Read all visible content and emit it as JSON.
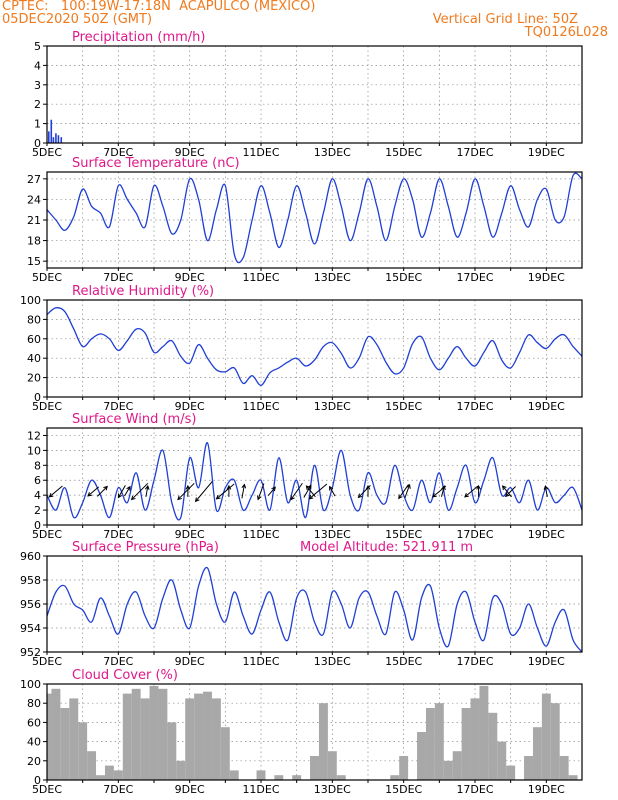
{
  "header": {
    "line1": "CPTEC:   100:19W-17:18N  ACAPULCO (MEXICO)",
    "line2": "05DEC2020 50Z (GMT)",
    "grid_note": "Vertical Grid Line: 50Z",
    "code": "TQ0126L028"
  },
  "colors": {
    "header": "#f07a1e",
    "title": "#e0188a",
    "series": "#1f3fd6",
    "cloud": "#a8a8a8",
    "arrow": "#000000"
  },
  "x_axis": {
    "tick_labels": [
      "5DEC",
      "7DEC",
      "9DEC",
      "11DEC",
      "13DEC",
      "15DEC",
      "17DEC",
      "19DEC"
    ],
    "range_days": [
      5,
      20
    ]
  },
  "chart_data": [
    {
      "type": "bar",
      "title": "Precipitation (mm/h)",
      "ylim": [
        0,
        5
      ],
      "yticks": [
        "0",
        "1",
        "2",
        "3",
        "4",
        "5"
      ],
      "x": [
        5.05,
        5.12,
        5.18,
        5.25,
        5.32,
        5.4
      ],
      "values": [
        0.6,
        1.2,
        0.3,
        0.5,
        0.4,
        0.3
      ]
    },
    {
      "type": "line",
      "title": "Surface Temperature (nC)",
      "ylim": [
        14,
        28
      ],
      "yticks": [
        "15",
        "18",
        "21",
        "24",
        "27"
      ],
      "x": [
        5.0,
        5.25,
        5.5,
        5.75,
        6.0,
        6.25,
        6.5,
        6.75,
        7.0,
        7.25,
        7.5,
        7.75,
        8.0,
        8.25,
        8.5,
        8.75,
        9.0,
        9.25,
        9.5,
        9.75,
        10.0,
        10.25,
        10.5,
        10.75,
        11.0,
        11.25,
        11.5,
        11.75,
        12.0,
        12.25,
        12.5,
        12.75,
        13.0,
        13.25,
        13.5,
        13.75,
        14.0,
        14.25,
        14.5,
        14.75,
        15.0,
        15.25,
        15.5,
        15.75,
        16.0,
        16.25,
        16.5,
        16.75,
        17.0,
        17.25,
        17.5,
        17.75,
        18.0,
        18.25,
        18.5,
        18.75,
        19.0,
        19.25,
        19.5,
        19.75,
        20.0
      ],
      "values": [
        22.5,
        21.0,
        19.5,
        21.5,
        25.5,
        23.0,
        22.0,
        20.0,
        26.0,
        24.0,
        22.0,
        20.0,
        26.0,
        23.0,
        19.0,
        21.0,
        27.0,
        24.0,
        18.0,
        22.5,
        26.0,
        16.0,
        15.5,
        21.0,
        26.0,
        22.0,
        17.0,
        21.0,
        26.0,
        22.0,
        17.5,
        22.0,
        27.0,
        23.0,
        18.0,
        22.0,
        27.0,
        23.0,
        18.0,
        23.0,
        27.0,
        24.0,
        18.5,
        22.0,
        27.0,
        23.0,
        18.5,
        22.0,
        27.0,
        23.0,
        18.5,
        22.0,
        26.0,
        22.5,
        20.0,
        24.0,
        25.5,
        21.0,
        21.5,
        27.5,
        27.0
      ]
    },
    {
      "type": "line",
      "title": "Relative Humidity (%)",
      "ylim": [
        0,
        100
      ],
      "yticks": [
        "0",
        "20",
        "40",
        "60",
        "80",
        "100"
      ],
      "x": [
        5.0,
        5.25,
        5.5,
        5.75,
        6.0,
        6.25,
        6.5,
        6.75,
        7.0,
        7.25,
        7.5,
        7.75,
        8.0,
        8.25,
        8.5,
        8.75,
        9.0,
        9.25,
        9.5,
        9.75,
        10.0,
        10.25,
        10.5,
        10.75,
        11.0,
        11.25,
        11.5,
        11.75,
        12.0,
        12.25,
        12.5,
        12.75,
        13.0,
        13.25,
        13.5,
        13.75,
        14.0,
        14.25,
        14.5,
        14.75,
        15.0,
        15.25,
        15.5,
        15.75,
        16.0,
        16.25,
        16.5,
        16.75,
        17.0,
        17.25,
        17.5,
        17.75,
        18.0,
        18.25,
        18.5,
        18.75,
        19.0,
        19.25,
        19.5,
        19.75,
        20.0
      ],
      "values": [
        85,
        92,
        88,
        70,
        52,
        60,
        65,
        60,
        48,
        58,
        70,
        66,
        46,
        52,
        58,
        42,
        35,
        54,
        40,
        28,
        26,
        30,
        14,
        22,
        12,
        25,
        30,
        36,
        40,
        32,
        38,
        52,
        56,
        45,
        30,
        40,
        62,
        54,
        36,
        24,
        30,
        55,
        62,
        40,
        28,
        40,
        52,
        40,
        32,
        46,
        58,
        38,
        30,
        46,
        64,
        56,
        50,
        60,
        64,
        52,
        42
      ]
    },
    {
      "type": "line",
      "title": "Surface Wind (m/s)",
      "ylim": [
        0,
        13
      ],
      "yticks": [
        "0",
        "2",
        "4",
        "6",
        "8",
        "10",
        "12"
      ],
      "x": [
        5.0,
        5.25,
        5.5,
        5.75,
        6.0,
        6.25,
        6.5,
        6.75,
        7.0,
        7.25,
        7.5,
        7.75,
        8.0,
        8.25,
        8.5,
        8.75,
        9.0,
        9.25,
        9.5,
        9.75,
        10.0,
        10.25,
        10.5,
        10.75,
        11.0,
        11.25,
        11.5,
        11.75,
        12.0,
        12.25,
        12.5,
        12.75,
        13.0,
        13.25,
        13.5,
        13.75,
        14.0,
        14.25,
        14.5,
        14.75,
        15.0,
        15.25,
        15.5,
        15.75,
        16.0,
        16.25,
        16.5,
        16.75,
        17.0,
        17.25,
        17.5,
        17.75,
        18.0,
        18.25,
        18.5,
        18.75,
        19.0,
        19.25,
        19.5,
        19.75,
        20.0
      ],
      "values": [
        4,
        2,
        5,
        1,
        3,
        6,
        4,
        1,
        5,
        3,
        7,
        2,
        6,
        10,
        3,
        1,
        9,
        5,
        11,
        2,
        5,
        6,
        2,
        4,
        6,
        2,
        9,
        3,
        6,
        1,
        8,
        2,
        5,
        10,
        4,
        2,
        7,
        4,
        3,
        8,
        4,
        2,
        6,
        3,
        7,
        2,
        5,
        8,
        3,
        6,
        9,
        4,
        5,
        3,
        6,
        2,
        5,
        3,
        4,
        5,
        2
      ]
    },
    {
      "type": "line",
      "title": "Surface Pressure (hPa)",
      "annotation": "Model Altitude: 521.911  m",
      "ylim": [
        952,
        960
      ],
      "yticks": [
        "952",
        "954",
        "956",
        "958",
        "960"
      ],
      "x": [
        5.0,
        5.25,
        5.5,
        5.75,
        6.0,
        6.25,
        6.5,
        6.75,
        7.0,
        7.25,
        7.5,
        7.75,
        8.0,
        8.25,
        8.5,
        8.75,
        9.0,
        9.25,
        9.5,
        9.75,
        10.0,
        10.25,
        10.5,
        10.75,
        11.0,
        11.25,
        11.5,
        11.75,
        12.0,
        12.25,
        12.5,
        12.75,
        13.0,
        13.25,
        13.5,
        13.75,
        14.0,
        14.25,
        14.5,
        14.75,
        15.0,
        15.25,
        15.5,
        15.75,
        16.0,
        16.25,
        16.5,
        16.75,
        17.0,
        17.25,
        17.5,
        17.75,
        18.0,
        18.25,
        18.5,
        18.75,
        19.0,
        19.25,
        19.5,
        19.75,
        20.0
      ],
      "values": [
        955.0,
        957.0,
        957.5,
        956.0,
        955.5,
        954.5,
        956.5,
        955.0,
        953.5,
        956.0,
        957.0,
        955.0,
        954.0,
        956.5,
        958.0,
        955.5,
        954.0,
        957.5,
        959.0,
        956.0,
        954.5,
        957.0,
        955.0,
        953.5,
        955.5,
        957.0,
        954.5,
        953.0,
        956.5,
        957.0,
        954.5,
        953.5,
        957.0,
        956.0,
        954.0,
        956.5,
        957.0,
        955.0,
        953.5,
        957.0,
        955.5,
        953.0,
        956.5,
        957.5,
        954.0,
        952.5,
        956.0,
        957.0,
        954.5,
        953.0,
        956.5,
        956.0,
        953.5,
        954.0,
        956.0,
        954.0,
        952.5,
        954.5,
        955.5,
        953.0,
        952.0
      ]
    },
    {
      "type": "area",
      "title": "Cloud Cover (%)",
      "ylim": [
        0,
        100
      ],
      "yticks": [
        "0",
        "20",
        "40",
        "60",
        "80",
        "100"
      ],
      "x": [
        5.0,
        5.25,
        5.5,
        5.75,
        6.0,
        6.25,
        6.5,
        6.75,
        7.0,
        7.25,
        7.5,
        7.75,
        8.0,
        8.25,
        8.5,
        8.75,
        9.0,
        9.25,
        9.5,
        9.75,
        10.0,
        10.25,
        10.5,
        10.75,
        11.0,
        11.25,
        11.5,
        11.75,
        12.0,
        12.25,
        12.5,
        12.75,
        13.0,
        13.25,
        13.5,
        13.75,
        14.0,
        14.25,
        14.5,
        14.75,
        15.0,
        15.25,
        15.5,
        15.75,
        16.0,
        16.25,
        16.5,
        16.75,
        17.0,
        17.25,
        17.5,
        17.75,
        18.0,
        18.25,
        18.5,
        18.75,
        19.0,
        19.25,
        19.5,
        19.75,
        20.0
      ],
      "values": [
        90,
        95,
        75,
        85,
        60,
        30,
        5,
        15,
        10,
        90,
        95,
        85,
        98,
        95,
        60,
        20,
        85,
        90,
        92,
        85,
        55,
        10,
        0,
        0,
        10,
        0,
        5,
        0,
        5,
        0,
        25,
        80,
        30,
        5,
        0,
        0,
        0,
        0,
        0,
        5,
        25,
        0,
        50,
        75,
        80,
        20,
        30,
        75,
        85,
        98,
        70,
        40,
        15,
        0,
        25,
        55,
        90,
        80,
        25,
        5,
        0
      ]
    }
  ],
  "wind_arrows": [
    {
      "x": 5.25,
      "dir_deg": 230,
      "speed_ms": 4
    },
    {
      "x": 6.3,
      "dir_deg": 230,
      "speed_ms": 3
    },
    {
      "x": 6.55,
      "dir_deg": 45,
      "speed_ms": 3
    },
    {
      "x": 7.1,
      "dir_deg": 210,
      "speed_ms": 3
    },
    {
      "x": 7.25,
      "dir_deg": 30,
      "speed_ms": 2
    },
    {
      "x": 7.6,
      "dir_deg": 225,
      "speed_ms": 6
    },
    {
      "x": 7.8,
      "dir_deg": 10,
      "speed_ms": 2
    },
    {
      "x": 8.9,
      "dir_deg": 225,
      "speed_ms": 6
    },
    {
      "x": 8.95,
      "dir_deg": 0,
      "speed_ms": 2
    },
    {
      "x": 9.4,
      "dir_deg": 220,
      "speed_ms": 7
    },
    {
      "x": 10.0,
      "dir_deg": 230,
      "speed_ms": 6
    },
    {
      "x": 10.1,
      "dir_deg": 0,
      "speed_ms": 2
    },
    {
      "x": 10.5,
      "dir_deg": 10,
      "speed_ms": 3
    },
    {
      "x": 11.0,
      "dir_deg": 200,
      "speed_ms": 4
    },
    {
      "x": 11.3,
      "dir_deg": 40,
      "speed_ms": 2
    },
    {
      "x": 12.0,
      "dir_deg": 215,
      "speed_ms": 5
    },
    {
      "x": 12.3,
      "dir_deg": 30,
      "speed_ms": 3
    },
    {
      "x": 12.4,
      "dir_deg": 320,
      "speed_ms": 3
    },
    {
      "x": 12.6,
      "dir_deg": 230,
      "speed_ms": 6
    },
    {
      "x": 13.0,
      "dir_deg": 330,
      "speed_ms": 2
    },
    {
      "x": 13.9,
      "dir_deg": 225,
      "speed_ms": 4
    },
    {
      "x": 14.0,
      "dir_deg": 0,
      "speed_ms": 2
    },
    {
      "x": 15.0,
      "dir_deg": 215,
      "speed_ms": 4
    },
    {
      "x": 15.1,
      "dir_deg": 20,
      "speed_ms": 3
    },
    {
      "x": 16.0,
      "dir_deg": 230,
      "speed_ms": 4
    },
    {
      "x": 16.1,
      "dir_deg": 15,
      "speed_ms": 2
    },
    {
      "x": 16.9,
      "dir_deg": 230,
      "speed_ms": 4
    },
    {
      "x": 17.1,
      "dir_deg": 0,
      "speed_ms": 2
    },
    {
      "x": 17.9,
      "dir_deg": 320,
      "speed_ms": 3
    },
    {
      "x": 18.0,
      "dir_deg": 225,
      "speed_ms": 3
    },
    {
      "x": 19.0,
      "dir_deg": 350,
      "speed_ms": 2
    }
  ]
}
